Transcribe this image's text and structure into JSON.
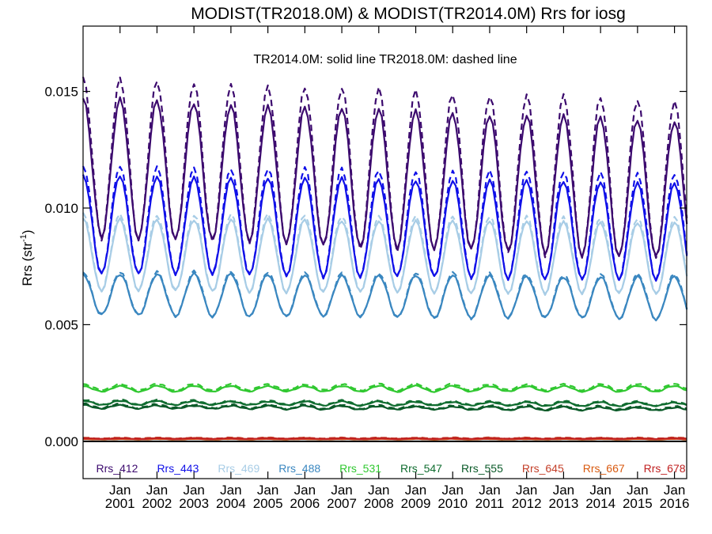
{
  "chart_data": {
    "type": "line",
    "title": "MODIST(TR2018.0M) & MODIST(TR2014.0M)  Rrs for iosg",
    "subtitle": "TR2014.0M: solid line   TR2018.0M: dashed line",
    "ylabel": "Rrs (str",
    "ylabel_sup": "-1",
    "ylabel_close": ")",
    "xlabel": "",
    "ylim": [
      -0.0016,
      0.0178
    ],
    "xlim": [
      2000.0,
      2016.33
    ],
    "grid": false,
    "legend_position": "bottom",
    "y_ticks": [
      {
        "value": 0.0,
        "label": "0.000"
      },
      {
        "value": 0.005,
        "label": "0.005"
      },
      {
        "value": 0.01,
        "label": "0.010"
      },
      {
        "value": 0.015,
        "label": "0.015"
      }
    ],
    "x_ticks": [
      {
        "value": 2001.0,
        "month": "Jan",
        "year": "2001"
      },
      {
        "value": 2002.0,
        "month": "Jan",
        "year": "2002"
      },
      {
        "value": 2003.0,
        "month": "Jan",
        "year": "2003"
      },
      {
        "value": 2004.0,
        "month": "Jan",
        "year": "2004"
      },
      {
        "value": 2005.0,
        "month": "Jan",
        "year": "2005"
      },
      {
        "value": 2006.0,
        "month": "Jan",
        "year": "2006"
      },
      {
        "value": 2007.0,
        "month": "Jan",
        "year": "2007"
      },
      {
        "value": 2008.0,
        "month": "Jan",
        "year": "2008"
      },
      {
        "value": 2009.0,
        "month": "Jan",
        "year": "2009"
      },
      {
        "value": 2010.0,
        "month": "Jan",
        "year": "2010"
      },
      {
        "value": 2011.0,
        "month": "Jan",
        "year": "2011"
      },
      {
        "value": 2012.0,
        "month": "Jan",
        "year": "2012"
      },
      {
        "value": 2013.0,
        "month": "Jan",
        "year": "2013"
      },
      {
        "value": 2014.0,
        "month": "Jan",
        "year": "2014"
      },
      {
        "value": 2015.0,
        "month": "Jan",
        "year": "2015"
      },
      {
        "value": 2016.0,
        "month": "Jan",
        "year": "2016"
      }
    ],
    "series": [
      {
        "name": "Rrs_412",
        "color": "#3c0a6e",
        "solid": {
          "base": 0.01175,
          "amp": 0.00295,
          "trend": -6e-05,
          "noise": 0.00012
        },
        "dashed": {
          "base": 0.01215,
          "amp": 0.0034,
          "trend": -6e-05,
          "noise": 0.00015
        }
      },
      {
        "name": "Rrs_443",
        "color": "#1010e8",
        "solid": {
          "base": 0.0093,
          "amp": 0.0021,
          "trend": -2e-05,
          "noise": 8e-05
        },
        "dashed": {
          "base": 0.0095,
          "amp": 0.0023,
          "trend": -2e-05,
          "noise": 0.0001
        }
      },
      {
        "name": "Rrs_469",
        "color": "#a8cde6",
        "solid": {
          "base": 0.008,
          "amp": 0.00155,
          "trend": -1e-05,
          "noise": 7e-05
        },
        "dashed": {
          "base": 0.0081,
          "amp": 0.00165,
          "trend": -1e-05,
          "noise": 8e-05
        }
      },
      {
        "name": "Rrs_488",
        "color": "#3a87c0",
        "solid": {
          "base": 0.0063,
          "amp": 0.0009,
          "trend": -1e-05,
          "noise": 7e-05
        },
        "dashed": {
          "base": 0.00635,
          "amp": 0.00095,
          "trend": -1e-05,
          "noise": 8e-05
        }
      },
      {
        "name": "Rrs_531",
        "color": "#30c830",
        "solid": {
          "base": 0.00225,
          "amp": 0.00012,
          "trend": 0.0,
          "noise": 3e-05
        },
        "dashed": {
          "base": 0.00232,
          "amp": 0.00013,
          "trend": 0.0,
          "noise": 4e-05
        }
      },
      {
        "name": "Rrs_547",
        "color": "#106d30",
        "solid": {
          "base": 0.00165,
          "amp": 8e-05,
          "trend": -4e-06,
          "noise": 3e-05
        },
        "dashed": {
          "base": 0.00168,
          "amp": 9e-05,
          "trend": -4e-06,
          "noise": 4e-05
        }
      },
      {
        "name": "Rrs_555",
        "color": "#0a5a28",
        "solid": {
          "base": 0.00148,
          "amp": 7e-05,
          "trend": -6e-06,
          "noise": 3e-05
        },
        "dashed": {
          "base": 0.00152,
          "amp": 8e-05,
          "trend": -6e-06,
          "noise": 4e-05
        }
      },
      {
        "name": "Rrs_645",
        "color": "#c4402a",
        "solid": {
          "base": 0.00012,
          "amp": 2e-05,
          "trend": 0.0,
          "noise": 1e-05
        },
        "dashed": {
          "base": 0.00014,
          "amp": 2e-05,
          "trend": 0.0,
          "noise": 1e-05
        }
      },
      {
        "name": "Rrs_667",
        "color": "#d85a10",
        "solid": {
          "base": 9e-05,
          "amp": 1e-05,
          "trend": 0.0,
          "noise": 1e-05
        },
        "dashed": {
          "base": 0.0001,
          "amp": 1e-05,
          "trend": 0.0,
          "noise": 1e-05
        }
      },
      {
        "name": "Rrs_678",
        "color": "#c02020",
        "solid": {
          "base": 0.00011,
          "amp": 1e-05,
          "trend": 0.0,
          "noise": 1e-05
        },
        "dashed": {
          "base": 0.00012,
          "amp": 1e-05,
          "trend": 0.0,
          "noise": 1e-05
        }
      }
    ]
  }
}
